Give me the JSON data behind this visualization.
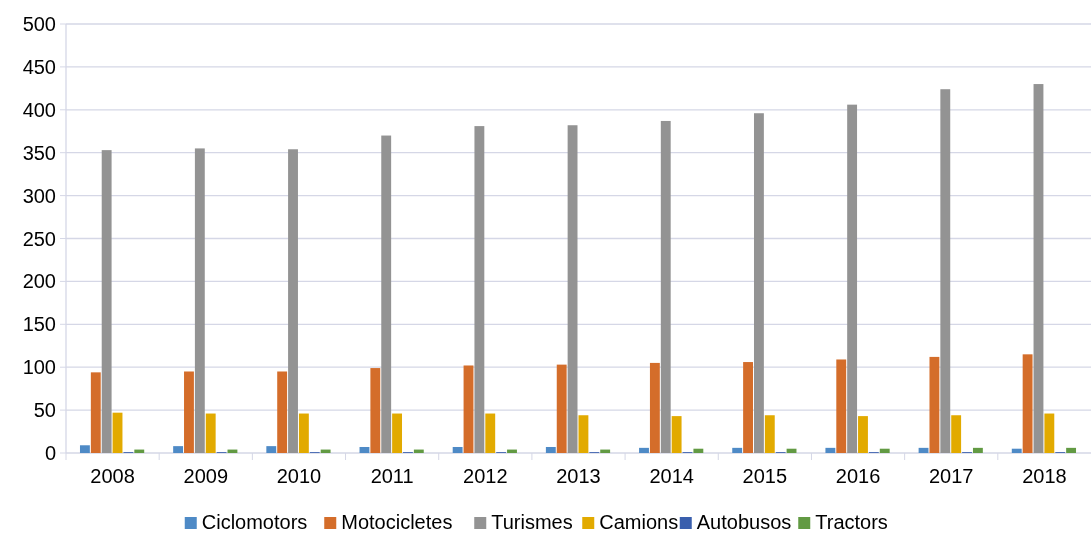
{
  "chart_data": {
    "type": "bar",
    "categories": [
      "2008",
      "2009",
      "2010",
      "2011",
      "2012",
      "2013",
      "2014",
      "2015",
      "2016",
      "2017",
      "2018"
    ],
    "series": [
      {
        "name": "Ciclomotors",
        "color": "#4e8ac6",
        "values": [
          9,
          8,
          8,
          7,
          7,
          7,
          6,
          6,
          6,
          6,
          5
        ]
      },
      {
        "name": "Motocicletes",
        "color": "#d46d2a",
        "values": [
          94,
          95,
          95,
          99,
          102,
          103,
          105,
          106,
          109,
          112,
          115
        ]
      },
      {
        "name": "Turismes",
        "color": "#939393",
        "values": [
          353,
          355,
          354,
          370,
          381,
          382,
          387,
          396,
          406,
          424,
          430
        ]
      },
      {
        "name": "Camions",
        "color": "#e2aa00",
        "values": [
          47,
          46,
          46,
          46,
          46,
          44,
          43,
          44,
          43,
          44,
          46
        ]
      },
      {
        "name": "Autobusos",
        "color": "#3a5fad",
        "values": [
          1,
          1,
          1,
          1,
          1,
          1,
          1,
          1,
          1,
          1,
          1
        ]
      },
      {
        "name": "Tractors",
        "color": "#629a43",
        "values": [
          4,
          4,
          4,
          4,
          4,
          4,
          5,
          5,
          5,
          6,
          6
        ]
      }
    ],
    "ylim": [
      0,
      500
    ],
    "yticks": [
      0,
      50,
      100,
      150,
      200,
      250,
      300,
      350,
      400,
      450,
      500
    ],
    "grid": "y",
    "legend": "bottom"
  }
}
